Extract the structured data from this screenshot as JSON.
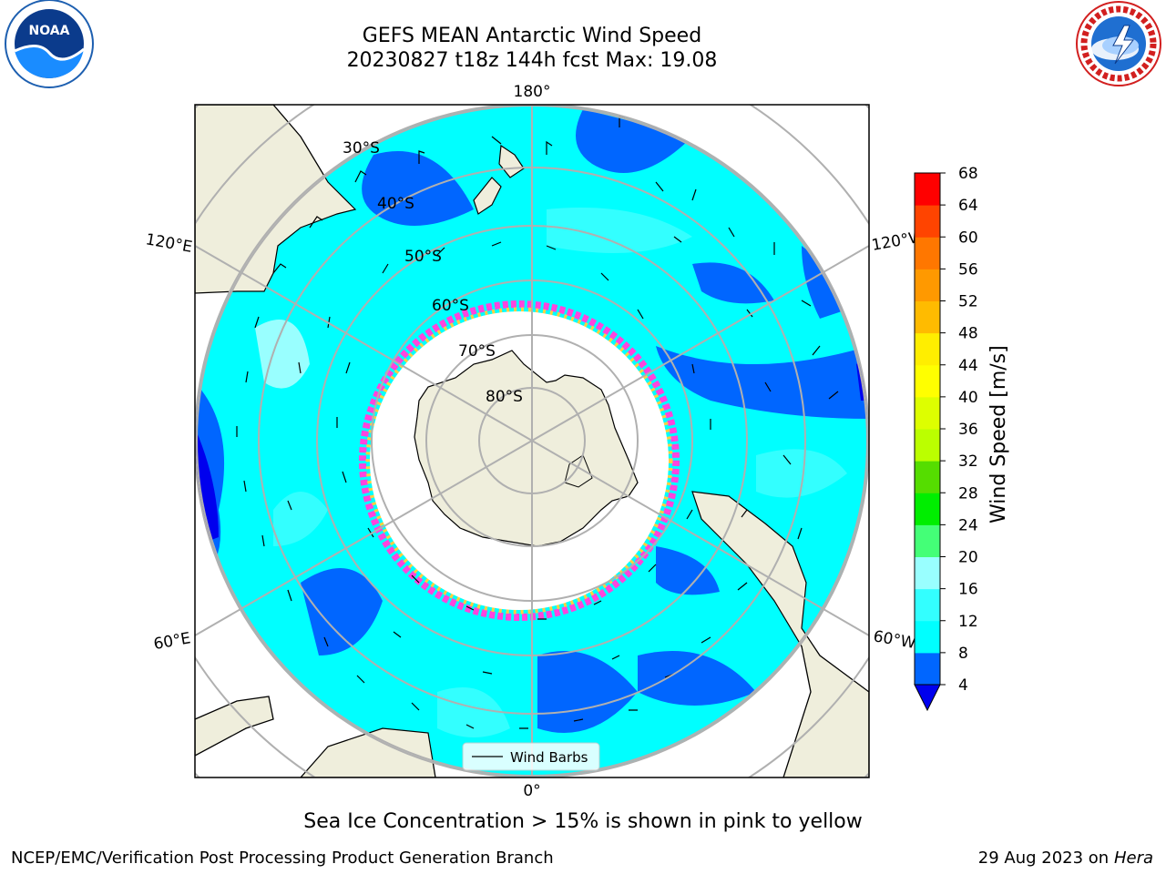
{
  "header": {
    "title_line1": "GEFS MEAN Antarctic Wind Speed",
    "title_line2": "20230827 t18z 144h fcst   Max: 19.08"
  },
  "logos": {
    "left": {
      "name": "NOAA",
      "text": "NOAA",
      "ring_text": "NATIONAL OCEANIC AND ATMOSPHERIC ADMINISTRATION · U.S. DEPARTMENT OF COMMERCE"
    },
    "right": {
      "name": "National Weather Service",
      "ring_text": "NATIONAL WEATHER SERVICE"
    }
  },
  "map": {
    "longitude_labels": {
      "top": "180°",
      "bottom": "0°",
      "upper_left": "120°E",
      "upper_right": "120°W",
      "lower_left": "60°E",
      "lower_right": "60°W"
    },
    "latitude_labels": [
      "30°S",
      "40°S",
      "50°S",
      "60°S",
      "70°S",
      "80°S"
    ],
    "legend_label": "Wind Barbs",
    "colors": {
      "land": "#efeedc",
      "ice_edge_pink": "#ff44dd",
      "ice_edge_yellow": "#ffd040",
      "grid": "#b0b0b0"
    }
  },
  "colorbar": {
    "title": "Wind Speed [m/s]",
    "ticks": [
      "4",
      "8",
      "12",
      "16",
      "20",
      "24",
      "28",
      "32",
      "36",
      "40",
      "44",
      "48",
      "52",
      "56",
      "60",
      "64",
      "68"
    ],
    "colors": [
      "#0066ff",
      "#00ffff",
      "#33ffff",
      "#99ffff",
      "#44ff77",
      "#00ee00",
      "#55dd00",
      "#bbff00",
      "#ddff00",
      "#ffff00",
      "#ffee00",
      "#ffbb00",
      "#ff9900",
      "#ff7700",
      "#ff4400",
      "#ff0000"
    ],
    "extend_color": "#0000ee"
  },
  "caption": "Sea Ice Concentration > 15% is shown in pink to yellow",
  "footer": {
    "left": "NCEP/EMC/Verification Post Processing Product Generation Branch",
    "right_date": "29 Aug 2023 on",
    "right_host": "Hera"
  }
}
